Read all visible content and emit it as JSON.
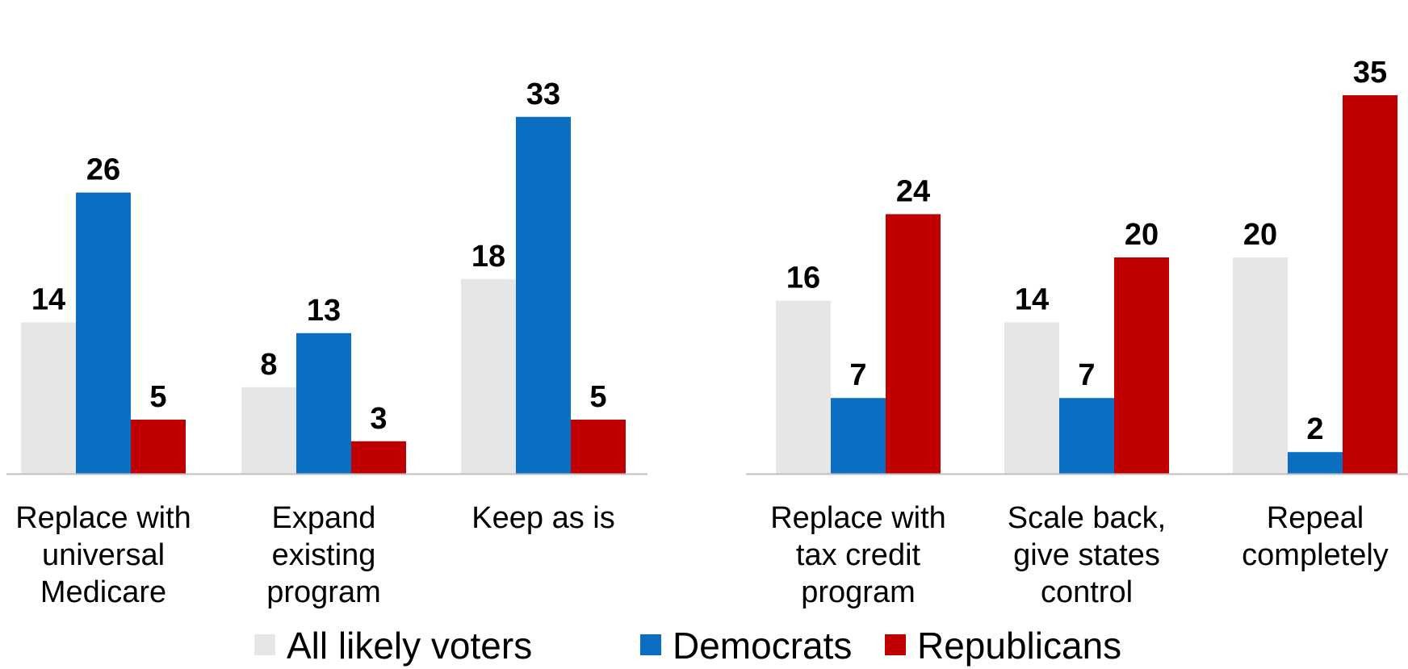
{
  "chart_data": [
    {
      "type": "bar",
      "categories": [
        [
          "Replace with",
          "universal",
          "Medicare"
        ],
        [
          "Expand",
          "existing",
          "program"
        ],
        [
          "Keep as is"
        ]
      ],
      "series": [
        {
          "name": "All likely voters",
          "color": "#e6e6e6",
          "values": [
            14,
            8,
            18
          ]
        },
        {
          "name": "Democrats",
          "color": "#0a6fc2",
          "values": [
            26,
            13,
            33
          ]
        },
        {
          "name": "Republicans",
          "color": "#c00000",
          "values": [
            5,
            3,
            5
          ]
        }
      ],
      "ylim": [
        0,
        35
      ],
      "grid": false
    },
    {
      "type": "bar",
      "categories": [
        [
          "Replace with",
          "tax credit",
          "program"
        ],
        [
          "Scale back,",
          "give states",
          "control"
        ],
        [
          "Repeal",
          "completely"
        ]
      ],
      "series": [
        {
          "name": "All likely voters",
          "color": "#e6e6e6",
          "values": [
            16,
            14,
            20
          ]
        },
        {
          "name": "Democrats",
          "color": "#0a6fc2",
          "values": [
            7,
            7,
            2
          ]
        },
        {
          "name": "Republicans",
          "color": "#c00000",
          "values": [
            24,
            20,
            35
          ]
        }
      ],
      "ylim": [
        0,
        35
      ],
      "grid": false
    }
  ],
  "legend": {
    "position": "bottom",
    "items": [
      {
        "label": "All likely voters",
        "color": "#e6e6e6"
      },
      {
        "label": "Democrats",
        "color": "#0a6fc2"
      },
      {
        "label": "Republicans",
        "color": "#c00000"
      }
    ]
  }
}
